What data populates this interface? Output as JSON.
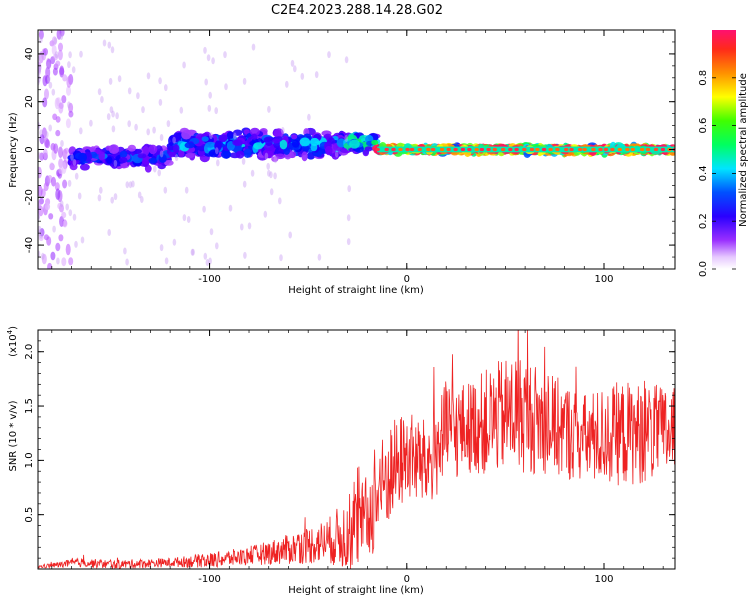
{
  "title": "C2E4.2023.288.14.28.G02",
  "chart_data": [
    {
      "type": "heatmap",
      "xlabel": "Height of straight line (km)",
      "ylabel": "Frequency (Hz)",
      "xlim": [
        -187,
        136
      ],
      "ylim": [
        -50,
        50
      ],
      "xticks": [
        -100,
        0,
        100
      ],
      "xtick_labels": [
        "-100",
        "0",
        "100"
      ],
      "yticks": [
        -40,
        -20,
        0,
        20,
        40
      ],
      "ytick_labels": [
        "-40",
        "-20",
        "0",
        "20",
        "40"
      ],
      "grid": false,
      "colorbar": {
        "label": "Normalized spectral amplitude",
        "range": [
          0,
          1
        ],
        "ticks": [
          0.0,
          0.2,
          0.4,
          0.6,
          0.8
        ],
        "tick_labels": [
          "0.0",
          "0.2",
          "0.4",
          "0.6",
          "0.8"
        ],
        "colormap": [
          "#ffffff",
          "#c060ff",
          "#7000ff",
          "#0000ff",
          "#00e0ff",
          "#00ff40",
          "#ffff00",
          "#ff8000",
          "#ff1060"
        ]
      },
      "regions": [
        {
          "x_range": [
            -187,
            -170
          ],
          "freq_spread_hz": 50,
          "amplitude": 0.15
        },
        {
          "x_range": [
            -170,
            -120
          ],
          "freq_center_hz": -3,
          "freq_spread_hz": 6,
          "amplitude": 0.3
        },
        {
          "x_range": [
            -120,
            -30
          ],
          "freq_center_hz": 2,
          "freq_spread_hz": 8,
          "amplitude": 0.35
        },
        {
          "x_range": [
            -30,
            -15
          ],
          "freq_center_hz": 3,
          "freq_spread_hz": 5,
          "amplitude": 0.45
        },
        {
          "x_range": [
            -15,
            136
          ],
          "freq_center_hz": 0,
          "freq_spread_hz": 2,
          "amplitude": 0.85
        }
      ]
    },
    {
      "type": "line",
      "xlabel": "Height of straight line (km)",
      "ylabel": "SNR (10 * v/v)",
      "y_scale_label": "(x10",
      "y_scale_exp": "4",
      "y_scale_close": ")",
      "xlim": [
        -187,
        136
      ],
      "ylim": [
        0,
        2.2
      ],
      "xticks": [
        -100,
        0,
        100
      ],
      "xtick_labels": [
        "-100",
        "0",
        "100"
      ],
      "yticks": [
        0.5,
        1.0,
        1.5,
        2.0
      ],
      "ytick_labels": [
        "0.5",
        "1.0",
        "1.5",
        "2.0"
      ],
      "grid": false,
      "series": [
        {
          "color": "#ee2222",
          "envelope": {
            "x": [
              -187,
              -165,
              -150,
              -120,
              -100,
              -80,
              -60,
              -40,
              -30,
              -20,
              -10,
              0,
              10,
              20,
              30,
              40,
              55,
              70,
              90,
              110,
              136
            ],
            "y_mean": [
              0.02,
              0.06,
              0.04,
              0.06,
              0.08,
              0.12,
              0.18,
              0.26,
              0.32,
              0.45,
              0.85,
              1.05,
              0.95,
              1.25,
              1.3,
              1.35,
              1.45,
              1.35,
              1.2,
              1.25,
              1.25
            ],
            "y_noise": [
              0.01,
              0.03,
              0.03,
              0.03,
              0.05,
              0.06,
              0.1,
              0.15,
              0.25,
              0.3,
              0.35,
              0.3,
              0.3,
              0.35,
              0.3,
              0.35,
              0.4,
              0.35,
              0.3,
              0.35,
              0.3
            ]
          }
        }
      ]
    }
  ]
}
